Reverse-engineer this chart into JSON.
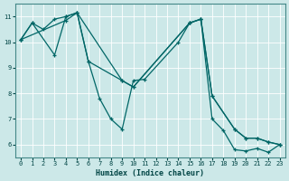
{
  "xlabel": "Humidex (Indice chaleur)",
  "bg_color": "#cce8e8",
  "grid_color": "#ffffff",
  "line_color": "#006666",
  "xlim": [
    -0.5,
    23.5
  ],
  "ylim": [
    5.5,
    11.5
  ],
  "xticks": [
    0,
    1,
    2,
    3,
    4,
    5,
    6,
    7,
    8,
    9,
    10,
    11,
    12,
    13,
    14,
    15,
    16,
    17,
    18,
    19,
    20,
    21,
    22,
    23
  ],
  "yticks": [
    6,
    7,
    8,
    9,
    10,
    11
  ],
  "lines": [
    {
      "x": [
        0,
        1,
        2,
        3,
        4,
        5,
        6,
        7,
        8,
        9,
        10,
        11,
        14,
        15,
        16,
        17,
        18,
        19,
        20,
        21,
        22,
        23
      ],
      "y": [
        10.1,
        10.75,
        10.5,
        10.9,
        11.0,
        11.15,
        9.25,
        7.8,
        7.0,
        6.6,
        8.5,
        8.55,
        10.0,
        10.75,
        10.9,
        7.0,
        6.55,
        5.8,
        5.75,
        5.85,
        5.7,
        6.0
      ]
    },
    {
      "x": [
        0,
        1,
        3,
        4,
        5,
        6,
        9,
        10,
        15,
        16,
        17,
        19,
        20,
        21,
        22,
        23
      ],
      "y": [
        10.1,
        10.75,
        9.5,
        11.0,
        11.15,
        9.25,
        8.5,
        8.25,
        10.75,
        10.9,
        7.9,
        6.6,
        6.25,
        6.25,
        6.1,
        6.0
      ]
    },
    {
      "x": [
        0,
        4,
        5,
        9,
        10,
        15,
        16,
        17,
        19,
        20,
        21,
        22,
        23
      ],
      "y": [
        10.1,
        10.85,
        11.15,
        8.5,
        8.25,
        10.75,
        10.9,
        7.9,
        6.6,
        6.25,
        6.25,
        6.1,
        6.0
      ]
    }
  ]
}
